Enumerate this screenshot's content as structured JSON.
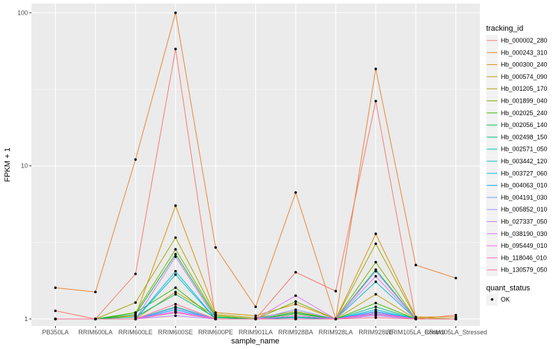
{
  "chart_data": {
    "type": "line",
    "xlabel": "sample_name",
    "ylabel": "FPKM + 1",
    "y_scale": "log10",
    "ylim": [
      0.9,
      115
    ],
    "yticks": [
      1,
      10,
      100
    ],
    "ytick_labels": [
      "1",
      "10",
      "100"
    ],
    "grid": true,
    "legend_placement": "right",
    "categories": [
      "PB350LA",
      "RRIM600LA",
      "RRIM600LE",
      "RRIM600SE",
      "RRIM600PE",
      "RRIM901LA",
      "RRIM928BA",
      "RRIM928LA",
      "RRIM928LE",
      "RRIM105LA_Control",
      "RRIM105LA_Stressed"
    ],
    "series_legend_title": "tracking_id",
    "series": [
      {
        "name": "Hb_000002_280",
        "color": "#F8766D",
        "values": [
          1.13,
          1.0,
          1.97,
          58,
          1.0,
          1.0,
          2.02,
          1.52,
          26.5,
          1.0,
          1.06
        ]
      },
      {
        "name": "Hb_000243_310",
        "color": "#EA8331",
        "values": [
          1.6,
          1.5,
          11,
          100,
          2.93,
          1.2,
          6.7,
          1.0,
          43,
          2.25,
          1.85
        ]
      },
      {
        "name": "Hb_000300_240",
        "color": "#D89000",
        "values": [
          1.0,
          1.0,
          1.05,
          5.5,
          1.1,
          1.05,
          1.25,
          1.0,
          3.6,
          1.03,
          1.03
        ]
      },
      {
        "name": "Hb_000574_090",
        "color": "#C09B00",
        "values": [
          1.0,
          1.0,
          1.0,
          1.5,
          1.05,
          1.0,
          1.1,
          1.0,
          1.45,
          1.0,
          1.0
        ]
      },
      {
        "name": "Hb_001205_170",
        "color": "#A3A500",
        "values": [
          1.0,
          1.0,
          1.28,
          3.4,
          1.07,
          1.02,
          1.12,
          1.0,
          3.1,
          1.02,
          1.0
        ]
      },
      {
        "name": "Hb_001899_040",
        "color": "#7CAE00",
        "values": [
          1.0,
          1.0,
          1.1,
          2.85,
          1.05,
          1.0,
          1.3,
          1.0,
          2.35,
          1.0,
          1.0
        ]
      },
      {
        "name": "Hb_002025_240",
        "color": "#39B600",
        "values": [
          1.0,
          1.0,
          1.1,
          1.6,
          1.0,
          1.0,
          1.08,
          1.0,
          1.27,
          1.0,
          1.0
        ]
      },
      {
        "name": "Hb_002056_140",
        "color": "#00BB4E",
        "values": [
          1.0,
          1.0,
          1.07,
          2.65,
          1.03,
          1.0,
          1.03,
          1.0,
          2.1,
          1.0,
          1.0
        ]
      },
      {
        "name": "Hb_002498_150",
        "color": "#00BF7D",
        "values": [
          1.0,
          1.0,
          1.03,
          1.45,
          1.02,
          1.0,
          1.1,
          1.0,
          1.2,
          1.0,
          1.0
        ]
      },
      {
        "name": "Hb_002571_050",
        "color": "#00C1A3",
        "values": [
          1.0,
          1.0,
          1.0,
          1.2,
          1.0,
          1.0,
          1.0,
          1.0,
          1.1,
          1.0,
          1.0
        ]
      },
      {
        "name": "Hb_003442_120",
        "color": "#00BFC4",
        "values": [
          1.0,
          1.0,
          1.0,
          1.95,
          1.0,
          1.0,
          1.05,
          1.0,
          1.75,
          1.0,
          1.0
        ]
      },
      {
        "name": "Hb_003727_060",
        "color": "#00B8E7",
        "values": [
          1.0,
          1.0,
          1.0,
          2.05,
          1.0,
          1.0,
          1.0,
          1.0,
          1.15,
          1.0,
          1.0
        ]
      },
      {
        "name": "Hb_004063_010",
        "color": "#00A9FF",
        "values": [
          1.0,
          1.0,
          1.0,
          1.15,
          1.0,
          1.0,
          1.02,
          1.0,
          1.12,
          1.0,
          1.0
        ]
      },
      {
        "name": "Hb_004191_030",
        "color": "#619CFF",
        "values": [
          1.0,
          1.0,
          1.0,
          1.1,
          1.0,
          1.0,
          1.0,
          1.0,
          1.08,
          1.0,
          1.0
        ]
      },
      {
        "name": "Hb_005852_010",
        "color": "#9590FF",
        "values": [
          1.0,
          1.0,
          1.0,
          1.18,
          1.0,
          1.0,
          1.15,
          1.0,
          2.05,
          1.0,
          1.0
        ]
      },
      {
        "name": "Hb_027337_050",
        "color": "#B983FF",
        "values": [
          1.0,
          1.0,
          1.0,
          1.05,
          1.0,
          1.0,
          1.0,
          1.0,
          1.05,
          1.0,
          1.0
        ]
      },
      {
        "name": "Hb_038190_030",
        "color": "#DB72FB",
        "values": [
          1.0,
          1.0,
          1.0,
          2.55,
          1.0,
          1.0,
          1.42,
          1.0,
          1.9,
          1.0,
          1.0
        ]
      },
      {
        "name": "Hb_095449_010",
        "color": "#F066EA",
        "values": [
          1.0,
          1.0,
          1.0,
          1.12,
          1.0,
          1.0,
          1.05,
          1.0,
          1.1,
          1.0,
          1.0
        ]
      },
      {
        "name": "Hb_118046_010",
        "color": "#FF62BC",
        "values": [
          1.0,
          1.0,
          1.0,
          1.1,
          1.0,
          1.0,
          1.0,
          1.0,
          1.07,
          1.0,
          1.0
        ]
      },
      {
        "name": "Hb_130579_050",
        "color": "#FF6C90",
        "values": [
          1.0,
          1.0,
          1.0,
          1.25,
          1.0,
          1.0,
          1.0,
          1.0,
          1.02,
          1.0,
          1.0
        ]
      }
    ],
    "point_legend_title": "quant_status",
    "point_legend_items": [
      "OK"
    ],
    "colors": {
      "panel_bg": "#EBEBEB",
      "grid": "#FFFFFF",
      "point": "#000000"
    }
  }
}
